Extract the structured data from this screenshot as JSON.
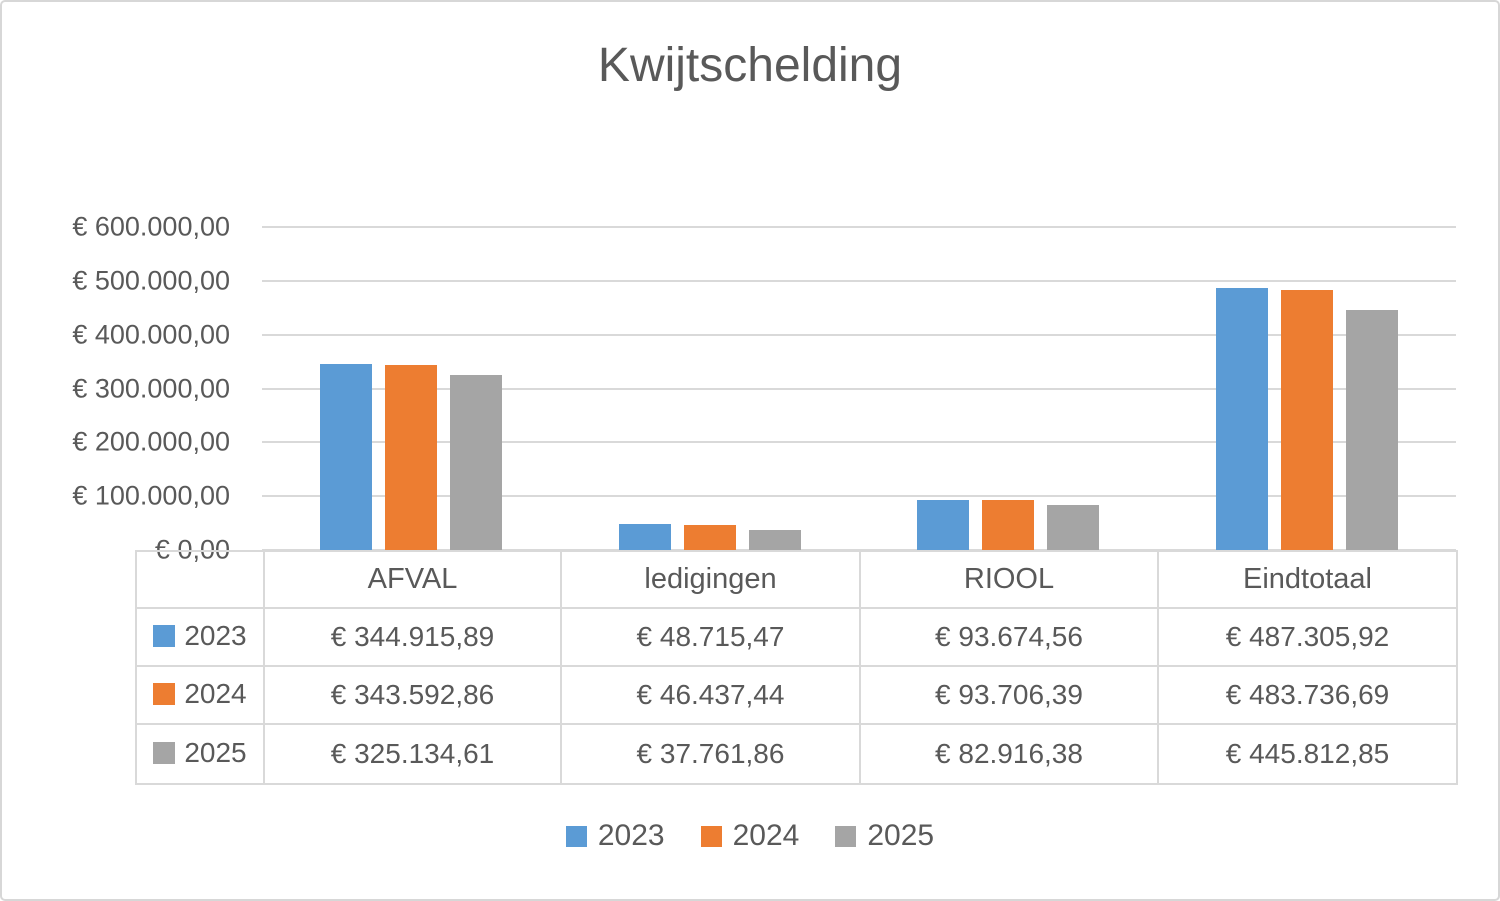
{
  "window": {
    "background": "#FFFFFF",
    "frame_border_color": "#D7D7D7"
  },
  "chart_data": {
    "type": "bar",
    "title": "Kwijtschelding",
    "categories": [
      "AFVAL",
      "ledigingen",
      "RIOOL",
      "Eindtotaal"
    ],
    "series": [
      {
        "name": "2023",
        "color": "#5B9BD5",
        "values": [
          344915.89,
          48715.47,
          93674.56,
          487305.92
        ],
        "labels": [
          "€ 344.915,89",
          "€ 48.715,47",
          "€ 93.674,56",
          "€ 487.305,92"
        ]
      },
      {
        "name": "2024",
        "color": "#ED7D31",
        "values": [
          343592.86,
          46437.44,
          93706.39,
          483736.69
        ],
        "labels": [
          "€ 343.592,86",
          "€ 46.437,44",
          "€ 93.706,39",
          "€ 483.736,69"
        ]
      },
      {
        "name": "2025",
        "color": "#A5A5A5",
        "values": [
          325134.61,
          37761.86,
          82916.38,
          445812.85
        ],
        "labels": [
          "€ 325.134,61",
          "€ 37.761,86",
          "€ 82.916,38",
          "€ 445.812,85"
        ]
      }
    ],
    "y_axis": {
      "min": 0,
      "max": 600000,
      "step": 100000,
      "tick_labels": [
        "€ 600.000,00",
        "€ 500.000,00",
        "€ 400.000,00",
        "€ 300.000,00",
        "€ 200.000,00",
        "€ 100.000,00",
        "€ 0,00"
      ]
    },
    "legend": {
      "position": "bottom",
      "entries": [
        "2023",
        "2024",
        "2025"
      ]
    },
    "grid": true,
    "data_table": true,
    "text_color": "#595959",
    "grid_color": "#D9D9D9"
  }
}
